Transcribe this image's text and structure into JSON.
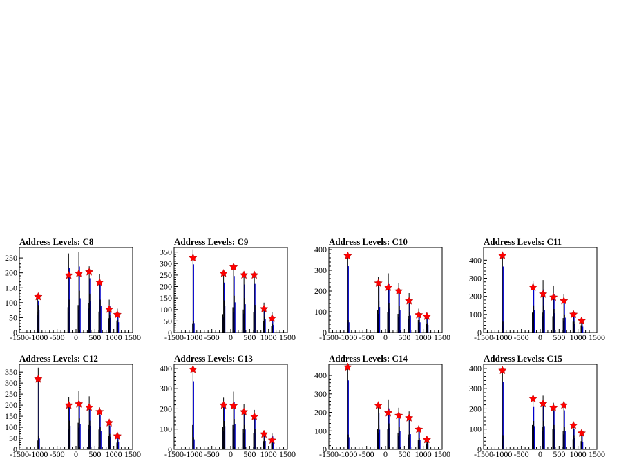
{
  "page": {
    "background": "#ffffff"
  },
  "colors": {
    "histogram": "#000000",
    "overlay": "#0000cc",
    "marker": "#ff0000",
    "axis": "#000000"
  },
  "marker_icon": "star-marker-icon",
  "chart_data": [
    {
      "type": "bar",
      "title": "Address Levels: C8",
      "xlim": [
        -1500,
        1500
      ],
      "ylim": [
        0,
        285
      ],
      "xticks": [
        -1500,
        -1000,
        -500,
        0,
        500,
        1000,
        1500
      ],
      "yticks": [
        0,
        50,
        100,
        150,
        200,
        250
      ],
      "xtick_labels": [
        "-1500",
        "-1000",
        "-500",
        "0",
        "500",
        "1000",
        "1500"
      ],
      "peaks": [
        {
          "x": -1000,
          "y": 120
        },
        {
          "x": -190,
          "y": 192
        },
        {
          "x": 75,
          "y": 198
        },
        {
          "x": 350,
          "y": 203
        },
        {
          "x": 625,
          "y": 168
        },
        {
          "x": 880,
          "y": 78
        },
        {
          "x": 1095,
          "y": 60
        }
      ],
      "bars": [
        {
          "x": -1030,
          "y": 70
        },
        {
          "x": -1012,
          "y": 128
        },
        {
          "x": -995,
          "y": 92
        },
        {
          "x": -215,
          "y": 85
        },
        {
          "x": -195,
          "y": 265
        },
        {
          "x": -178,
          "y": 110
        },
        {
          "x": 55,
          "y": 92
        },
        {
          "x": 75,
          "y": 270
        },
        {
          "x": 95,
          "y": 140
        },
        {
          "x": 330,
          "y": 98
        },
        {
          "x": 350,
          "y": 222
        },
        {
          "x": 368,
          "y": 130
        },
        {
          "x": 605,
          "y": 70
        },
        {
          "x": 625,
          "y": 195
        },
        {
          "x": 645,
          "y": 110
        },
        {
          "x": 865,
          "y": 48
        },
        {
          "x": 880,
          "y": 110
        },
        {
          "x": 898,
          "y": 60
        },
        {
          "x": 1080,
          "y": 40
        },
        {
          "x": 1095,
          "y": 80
        },
        {
          "x": 1110,
          "y": 42
        }
      ]
    },
    {
      "type": "bar",
      "title": "Address Levels: C9",
      "xlim": [
        -1500,
        1500
      ],
      "ylim": [
        0,
        370
      ],
      "xticks": [
        -1500,
        -1000,
        -500,
        0,
        500,
        1000,
        1500
      ],
      "yticks": [
        0,
        50,
        100,
        150,
        200,
        250,
        300,
        350
      ],
      "xtick_labels": [
        "-1500",
        "-1000",
        "-500",
        "0",
        "500",
        "1000",
        "1500"
      ],
      "peaks": [
        {
          "x": -1000,
          "y": 325
        },
        {
          "x": -190,
          "y": 257
        },
        {
          "x": 75,
          "y": 285
        },
        {
          "x": 350,
          "y": 250
        },
        {
          "x": 625,
          "y": 250
        },
        {
          "x": 880,
          "y": 103
        },
        {
          "x": 1095,
          "y": 62
        }
      ],
      "bars": [
        {
          "x": -1012,
          "y": 40
        },
        {
          "x": -1000,
          "y": 362
        },
        {
          "x": -985,
          "y": 50
        },
        {
          "x": -210,
          "y": 80
        },
        {
          "x": -190,
          "y": 265
        },
        {
          "x": -172,
          "y": 140
        },
        {
          "x": 55,
          "y": 110
        },
        {
          "x": 75,
          "y": 300
        },
        {
          "x": 95,
          "y": 160
        },
        {
          "x": 330,
          "y": 100
        },
        {
          "x": 350,
          "y": 255
        },
        {
          "x": 368,
          "y": 150
        },
        {
          "x": 605,
          "y": 90
        },
        {
          "x": 625,
          "y": 258
        },
        {
          "x": 645,
          "y": 120
        },
        {
          "x": 865,
          "y": 50
        },
        {
          "x": 880,
          "y": 130
        },
        {
          "x": 898,
          "y": 70
        },
        {
          "x": 1080,
          "y": 30
        },
        {
          "x": 1095,
          "y": 88
        },
        {
          "x": 1110,
          "y": 40
        }
      ]
    },
    {
      "type": "bar",
      "title": "Address Levels: C10",
      "xlim": [
        -1500,
        1500
      ],
      "ylim": [
        0,
        410
      ],
      "xticks": [
        -1500,
        -1000,
        -500,
        0,
        500,
        1000,
        1500
      ],
      "yticks": [
        0,
        100,
        200,
        300,
        400
      ],
      "xtick_labels": [
        "-1500",
        "-1000",
        "-500",
        "0",
        "500",
        "1000",
        "1500"
      ],
      "peaks": [
        {
          "x": -1000,
          "y": 370
        },
        {
          "x": -190,
          "y": 238
        },
        {
          "x": 75,
          "y": 218
        },
        {
          "x": 350,
          "y": 200
        },
        {
          "x": 625,
          "y": 152
        },
        {
          "x": 880,
          "y": 85
        },
        {
          "x": 1095,
          "y": 78
        }
      ],
      "bars": [
        {
          "x": -1012,
          "y": 40
        },
        {
          "x": -1000,
          "y": 390
        },
        {
          "x": -985,
          "y": 60
        },
        {
          "x": -210,
          "y": 110
        },
        {
          "x": -190,
          "y": 270
        },
        {
          "x": -172,
          "y": 150
        },
        {
          "x": 55,
          "y": 100
        },
        {
          "x": 75,
          "y": 285
        },
        {
          "x": 95,
          "y": 140
        },
        {
          "x": 330,
          "y": 90
        },
        {
          "x": 350,
          "y": 240
        },
        {
          "x": 368,
          "y": 130
        },
        {
          "x": 605,
          "y": 80
        },
        {
          "x": 625,
          "y": 190
        },
        {
          "x": 645,
          "y": 100
        },
        {
          "x": 865,
          "y": 60
        },
        {
          "x": 880,
          "y": 115
        },
        {
          "x": 898,
          "y": 60
        },
        {
          "x": 1080,
          "y": 40
        },
        {
          "x": 1095,
          "y": 95
        },
        {
          "x": 1110,
          "y": 45
        }
      ]
    },
    {
      "type": "bar",
      "title": "Address Levels: C11",
      "xlim": [
        -1500,
        1500
      ],
      "ylim": [
        0,
        470
      ],
      "xticks": [
        -1500,
        -1000,
        -500,
        0,
        500,
        1000,
        1500
      ],
      "yticks": [
        0,
        100,
        200,
        300,
        400
      ],
      "xtick_labels": [
        "-1500",
        "-1000",
        "-500",
        "0",
        "500",
        "1000",
        "1500"
      ],
      "peaks": [
        {
          "x": -1000,
          "y": 425
        },
        {
          "x": -190,
          "y": 250
        },
        {
          "x": 75,
          "y": 212
        },
        {
          "x": 350,
          "y": 195
        },
        {
          "x": 625,
          "y": 175
        },
        {
          "x": 880,
          "y": 100
        },
        {
          "x": 1095,
          "y": 65
        }
      ],
      "bars": [
        {
          "x": -1012,
          "y": 40
        },
        {
          "x": -1000,
          "y": 445
        },
        {
          "x": -985,
          "y": 60
        },
        {
          "x": -210,
          "y": 110
        },
        {
          "x": -190,
          "y": 285
        },
        {
          "x": -172,
          "y": 150
        },
        {
          "x": 55,
          "y": 110
        },
        {
          "x": 75,
          "y": 290
        },
        {
          "x": 95,
          "y": 150
        },
        {
          "x": 330,
          "y": 90
        },
        {
          "x": 350,
          "y": 260
        },
        {
          "x": 368,
          "y": 130
        },
        {
          "x": 605,
          "y": 80
        },
        {
          "x": 625,
          "y": 210
        },
        {
          "x": 645,
          "y": 100
        },
        {
          "x": 865,
          "y": 60
        },
        {
          "x": 880,
          "y": 120
        },
        {
          "x": 898,
          "y": 60
        },
        {
          "x": 1080,
          "y": 40
        },
        {
          "x": 1095,
          "y": 80
        },
        {
          "x": 1110,
          "y": 40
        }
      ]
    },
    {
      "type": "bar",
      "title": "Address Levels: C12",
      "xlim": [
        -1500,
        1500
      ],
      "ylim": [
        0,
        385
      ],
      "xticks": [
        -1500,
        -1000,
        -500,
        0,
        500,
        1000,
        1500
      ],
      "yticks": [
        0,
        50,
        100,
        150,
        200,
        250,
        300,
        350
      ],
      "xtick_labels": [
        "-1500",
        "-1000",
        "-500",
        "0",
        "500",
        "1000",
        "1500"
      ],
      "peaks": [
        {
          "x": -1000,
          "y": 318
        },
        {
          "x": -190,
          "y": 200
        },
        {
          "x": 75,
          "y": 205
        },
        {
          "x": 350,
          "y": 190
        },
        {
          "x": 625,
          "y": 170
        },
        {
          "x": 880,
          "y": 120
        },
        {
          "x": 1095,
          "y": 60
        }
      ],
      "bars": [
        {
          "x": -1012,
          "y": 40
        },
        {
          "x": -1000,
          "y": 370
        },
        {
          "x": -985,
          "y": 60
        },
        {
          "x": -210,
          "y": 110
        },
        {
          "x": -190,
          "y": 235
        },
        {
          "x": -172,
          "y": 130
        },
        {
          "x": 55,
          "y": 120
        },
        {
          "x": 75,
          "y": 265
        },
        {
          "x": 95,
          "y": 140
        },
        {
          "x": 330,
          "y": 110
        },
        {
          "x": 350,
          "y": 240
        },
        {
          "x": 368,
          "y": 130
        },
        {
          "x": 605,
          "y": 90
        },
        {
          "x": 625,
          "y": 190
        },
        {
          "x": 645,
          "y": 100
        },
        {
          "x": 865,
          "y": 60
        },
        {
          "x": 880,
          "y": 130
        },
        {
          "x": 898,
          "y": 70
        },
        {
          "x": 1080,
          "y": 30
        },
        {
          "x": 1095,
          "y": 70
        },
        {
          "x": 1110,
          "y": 40
        }
      ]
    },
    {
      "type": "bar",
      "title": "Address Levels: C13",
      "xlim": [
        -1500,
        1500
      ],
      "ylim": [
        0,
        420
      ],
      "xticks": [
        -1500,
        -1000,
        -500,
        0,
        500,
        1000,
        1500
      ],
      "yticks": [
        0,
        100,
        200,
        300,
        400
      ],
      "xtick_labels": [
        "-1500",
        "-1000",
        "-500",
        "0",
        "500",
        "1000",
        "1500"
      ],
      "peaks": [
        {
          "x": -1000,
          "y": 395
        },
        {
          "x": -190,
          "y": 218
        },
        {
          "x": 75,
          "y": 215
        },
        {
          "x": 350,
          "y": 185
        },
        {
          "x": 625,
          "y": 162
        },
        {
          "x": 880,
          "y": 75
        },
        {
          "x": 1095,
          "y": 45
        }
      ],
      "bars": [
        {
          "x": -1012,
          "y": 120
        },
        {
          "x": -1000,
          "y": 410
        },
        {
          "x": -985,
          "y": 60
        },
        {
          "x": -210,
          "y": 110
        },
        {
          "x": -190,
          "y": 255
        },
        {
          "x": -172,
          "y": 140
        },
        {
          "x": 55,
          "y": 120
        },
        {
          "x": 75,
          "y": 285
        },
        {
          "x": 95,
          "y": 150
        },
        {
          "x": 330,
          "y": 100
        },
        {
          "x": 350,
          "y": 225
        },
        {
          "x": 368,
          "y": 120
        },
        {
          "x": 605,
          "y": 80
        },
        {
          "x": 625,
          "y": 195
        },
        {
          "x": 645,
          "y": 100
        },
        {
          "x": 865,
          "y": 40
        },
        {
          "x": 880,
          "y": 90
        },
        {
          "x": 898,
          "y": 50
        },
        {
          "x": 1080,
          "y": 30
        },
        {
          "x": 1095,
          "y": 78
        },
        {
          "x": 1110,
          "y": 40
        }
      ]
    },
    {
      "type": "bar",
      "title": "Address Levels: C14",
      "xlim": [
        -1500,
        1500
      ],
      "ylim": [
        0,
        460
      ],
      "xticks": [
        -1500,
        -1000,
        -500,
        0,
        500,
        1000,
        1500
      ],
      "yticks": [
        0,
        100,
        200,
        300,
        400
      ],
      "xtick_labels": [
        "-1500",
        "-1000",
        "-500",
        "0",
        "500",
        "1000",
        "1500"
      ],
      "peaks": [
        {
          "x": -1000,
          "y": 445
        },
        {
          "x": -190,
          "y": 237
        },
        {
          "x": 75,
          "y": 197
        },
        {
          "x": 350,
          "y": 183
        },
        {
          "x": 625,
          "y": 170
        },
        {
          "x": 880,
          "y": 108
        },
        {
          "x": 1095,
          "y": 52
        }
      ],
      "bars": [
        {
          "x": -1012,
          "y": 60
        },
        {
          "x": -1000,
          "y": 455
        },
        {
          "x": -985,
          "y": 80
        },
        {
          "x": -210,
          "y": 110
        },
        {
          "x": -190,
          "y": 240
        },
        {
          "x": -172,
          "y": 130
        },
        {
          "x": 55,
          "y": 110
        },
        {
          "x": 75,
          "y": 270
        },
        {
          "x": 95,
          "y": 140
        },
        {
          "x": 330,
          "y": 90
        },
        {
          "x": 350,
          "y": 225
        },
        {
          "x": 368,
          "y": 120
        },
        {
          "x": 605,
          "y": 80
        },
        {
          "x": 625,
          "y": 205
        },
        {
          "x": 645,
          "y": 100
        },
        {
          "x": 865,
          "y": 50
        },
        {
          "x": 880,
          "y": 115
        },
        {
          "x": 898,
          "y": 60
        },
        {
          "x": 1080,
          "y": 30
        },
        {
          "x": 1095,
          "y": 70
        },
        {
          "x": 1110,
          "y": 40
        }
      ]
    },
    {
      "type": "bar",
      "title": "Address Levels: C15",
      "xlim": [
        -1500,
        1500
      ],
      "ylim": [
        0,
        420
      ],
      "xticks": [
        -1500,
        -1000,
        -500,
        0,
        500,
        1000,
        1500
      ],
      "yticks": [
        0,
        100,
        200,
        300,
        400
      ],
      "xtick_labels": [
        "-1500",
        "-1000",
        "-500",
        "0",
        "500",
        "1000",
        "1500"
      ],
      "peaks": [
        {
          "x": -1000,
          "y": 390
        },
        {
          "x": -190,
          "y": 250
        },
        {
          "x": 75,
          "y": 225
        },
        {
          "x": 350,
          "y": 205
        },
        {
          "x": 625,
          "y": 218
        },
        {
          "x": 880,
          "y": 118
        },
        {
          "x": 1095,
          "y": 80
        }
      ],
      "bars": [
        {
          "x": -1012,
          "y": 60
        },
        {
          "x": -1000,
          "y": 405
        },
        {
          "x": -985,
          "y": 70
        },
        {
          "x": -210,
          "y": 120
        },
        {
          "x": -190,
          "y": 255
        },
        {
          "x": -172,
          "y": 140
        },
        {
          "x": 55,
          "y": 110
        },
        {
          "x": 75,
          "y": 265
        },
        {
          "x": 95,
          "y": 140
        },
        {
          "x": 330,
          "y": 100
        },
        {
          "x": 350,
          "y": 230
        },
        {
          "x": 368,
          "y": 120
        },
        {
          "x": 605,
          "y": 90
        },
        {
          "x": 625,
          "y": 235
        },
        {
          "x": 645,
          "y": 110
        },
        {
          "x": 865,
          "y": 50
        },
        {
          "x": 880,
          "y": 125
        },
        {
          "x": 898,
          "y": 70
        },
        {
          "x": 1080,
          "y": 40
        },
        {
          "x": 1095,
          "y": 95
        },
        {
          "x": 1110,
          "y": 45
        }
      ]
    }
  ]
}
